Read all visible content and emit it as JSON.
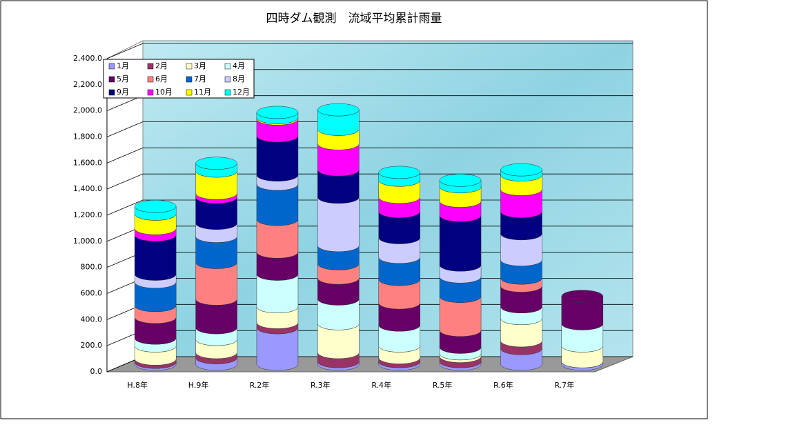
{
  "chart_data": {
    "type": "bar",
    "title": "四時ダム観測　流域平均累計雨量",
    "categories": [
      "H.8年",
      "H.9年",
      "R.2年",
      "R.3年",
      "R.4年",
      "R.5年",
      "R.6年",
      "R.7年"
    ],
    "stacked": true,
    "series": [
      {
        "name": "1月",
        "color": "#9999ff",
        "values": [
          15,
          50,
          280,
          20,
          20,
          20,
          120,
          20
        ]
      },
      {
        "name": "2月",
        "color": "#993366",
        "values": [
          25,
          40,
          40,
          70,
          30,
          40,
          60,
          0
        ]
      },
      {
        "name": "3月",
        "color": "#ffffcc",
        "values": [
          100,
          100,
          120,
          220,
          90,
          20,
          170,
          120
        ]
      },
      {
        "name": "4月",
        "color": "#ccffff",
        "values": [
          60,
          90,
          250,
          190,
          160,
          50,
          90,
          170
        ]
      },
      {
        "name": "5月",
        "color": "#660066",
        "values": [
          160,
          220,
          170,
          160,
          170,
          130,
          160,
          210
        ]
      },
      {
        "name": "6月",
        "color": "#ff8080",
        "values": [
          90,
          280,
          250,
          110,
          180,
          260,
          60,
          null
        ]
      },
      {
        "name": "7月",
        "color": "#0066cc",
        "values": [
          180,
          200,
          270,
          140,
          170,
          150,
          140,
          null
        ]
      },
      {
        "name": "8月",
        "color": "#ccccff",
        "values": [
          60,
          100,
          70,
          370,
          150,
          90,
          200,
          null
        ]
      },
      {
        "name": "9月",
        "color": "#000080",
        "values": [
          300,
          200,
          300,
          210,
          200,
          380,
          170,
          null
        ]
      },
      {
        "name": "10月",
        "color": "#ff00ff",
        "values": [
          50,
          30,
          130,
          200,
          110,
          110,
          170,
          null
        ]
      },
      {
        "name": "11月",
        "color": "#ffff00",
        "values": [
          110,
          170,
          10,
          110,
          130,
          110,
          110,
          null
        ]
      },
      {
        "name": "12月",
        "color": "#00ffff",
        "values": [
          60,
          60,
          40,
          150,
          60,
          50,
          40,
          null
        ]
      }
    ],
    "ylim": [
      0,
      2400
    ],
    "yticks": [
      {
        "value": 0,
        "label": "0.0"
      },
      {
        "value": 200,
        "label": "200.0"
      },
      {
        "value": 400,
        "label": "400.0"
      },
      {
        "value": 600,
        "label": "600.0"
      },
      {
        "value": 800,
        "label": "800.0"
      },
      {
        "value": 1000,
        "label": "1,000.0"
      },
      {
        "value": 1200,
        "label": "1,200.0"
      },
      {
        "value": 1400,
        "label": "1,400.0"
      },
      {
        "value": 1600,
        "label": "1,600.0"
      },
      {
        "value": 1800,
        "label": "1,800.0"
      },
      {
        "value": 2000,
        "label": "2,000.0"
      },
      {
        "value": 2200,
        "label": "2,200.0"
      },
      {
        "value": 2400,
        "label": "2,400.0"
      }
    ],
    "grid": true,
    "legend": "top-left"
  }
}
